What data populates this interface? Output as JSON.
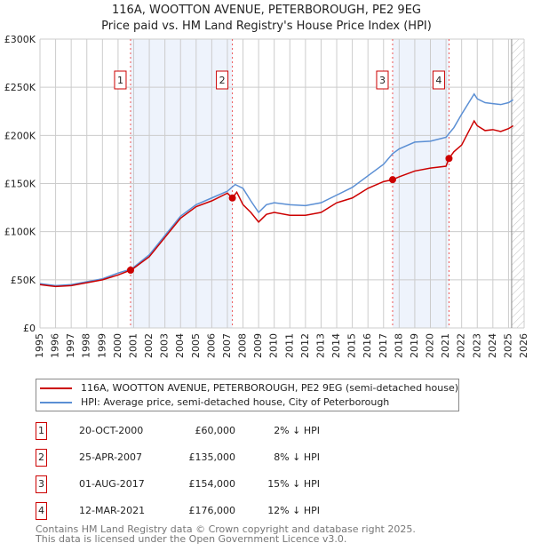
{
  "title": "116A, WOOTTON AVENUE, PETERBOROUGH, PE2 9EG",
  "subtitle": "Price paid vs. HM Land Registry's House Price Index (HPI)",
  "chart_data": {
    "type": "line",
    "title": "116A, WOOTTON AVENUE, PETERBOROUGH, PE2 9EG",
    "subtitle": "Price paid vs. HM Land Registry's House Price Index (HPI)",
    "xlim": [
      1995,
      2026
    ],
    "ylim": [
      0,
      300000
    ],
    "x_ticks": [
      "1995",
      "1996",
      "1997",
      "1998",
      "1999",
      "2000",
      "2001",
      "2002",
      "2003",
      "2004",
      "2005",
      "2006",
      "2007",
      "2008",
      "2009",
      "2010",
      "2011",
      "2012",
      "2013",
      "2014",
      "2015",
      "2016",
      "2017",
      "2018",
      "2019",
      "2020",
      "2021",
      "2022",
      "2023",
      "2024",
      "2025",
      "2026"
    ],
    "y_ticks": [
      {
        "v": 0,
        "label": "£0"
      },
      {
        "v": 50000,
        "label": "£50K"
      },
      {
        "v": 100000,
        "label": "£100K"
      },
      {
        "v": 150000,
        "label": "£150K"
      },
      {
        "v": 200000,
        "label": "£200K"
      },
      {
        "v": 250000,
        "label": "£250K"
      },
      {
        "v": 300000,
        "label": "£300K"
      }
    ],
    "grid": true,
    "shaded_ranges": [
      [
        2000.8,
        2007.32
      ],
      [
        2017.58,
        2021.19
      ]
    ],
    "hatched_from": 2025.2,
    "series": [
      {
        "name": "116A, WOOTTON AVENUE, PETERBOROUGH, PE2 9EG (semi-detached house)",
        "color": "#cc0000",
        "x": [
          1995,
          1995.5,
          1996,
          1997,
          1998,
          1999,
          2000,
          2000.8,
          2001,
          2002,
          2003,
          2004,
          2005,
          2006,
          2007,
          2007.32,
          2007.6,
          2008,
          2008.5,
          2009,
          2009.5,
          2010,
          2011,
          2012,
          2013,
          2014,
          2015,
          2016,
          2017,
          2017.58,
          2018,
          2019,
          2020,
          2021,
          2021.19,
          2021.5,
          2022,
          2022.8,
          2023,
          2023.5,
          2024,
          2024.5,
          2025,
          2025.3
        ],
        "y": [
          45000,
          44000,
          43000,
          44000,
          47000,
          50000,
          55000,
          60000,
          62000,
          74000,
          94000,
          114000,
          126000,
          132000,
          140000,
          135000,
          141000,
          128000,
          120000,
          110000,
          118000,
          120000,
          117000,
          117000,
          120000,
          130000,
          135000,
          145000,
          152000,
          154000,
          157000,
          163000,
          166000,
          168000,
          176000,
          183000,
          190000,
          215000,
          210000,
          205000,
          206000,
          204000,
          207000,
          210000
        ]
      },
      {
        "name": "HPI: Average price, semi-detached house, City of Peterborough",
        "color": "#5b8fd4",
        "x": [
          1995,
          1995.5,
          1996,
          1997,
          1998,
          1999,
          2000,
          2000.8,
          2001,
          2002,
          2003,
          2004,
          2005,
          2006,
          2007,
          2007.5,
          2008,
          2008.5,
          2009,
          2009.5,
          2010,
          2011,
          2012,
          2013,
          2014,
          2015,
          2016,
          2017,
          2017.58,
          2018,
          2019,
          2020,
          2021,
          2021.5,
          2022,
          2022.8,
          2023,
          2023.5,
          2024,
          2024.5,
          2025,
          2025.3
        ],
        "y": [
          46000,
          45000,
          44000,
          45000,
          48000,
          51000,
          57000,
          61000,
          63000,
          76000,
          96000,
          116000,
          128000,
          135000,
          142000,
          149000,
          145000,
          132000,
          120000,
          128000,
          130000,
          128000,
          127000,
          130000,
          138000,
          146000,
          158000,
          170000,
          181000,
          186000,
          193000,
          194000,
          198000,
          208000,
          222000,
          243000,
          238000,
          234000,
          233000,
          232000,
          234000,
          237000
        ]
      }
    ],
    "sales": [
      {
        "n": "1",
        "x": 2000.8,
        "y": 60000
      },
      {
        "n": "2",
        "x": 2007.32,
        "y": 135000
      },
      {
        "n": "3",
        "x": 2017.58,
        "y": 154000
      },
      {
        "n": "4",
        "x": 2021.19,
        "y": 176000
      }
    ]
  },
  "legend": [
    "116A, WOOTTON AVENUE, PETERBOROUGH, PE2 9EG (semi-detached house)",
    "HPI: Average price, semi-detached house, City of Peterborough"
  ],
  "table": [
    {
      "n": "1",
      "date": "20-OCT-2000",
      "price": "£60,000",
      "diff": "2% ↓ HPI"
    },
    {
      "n": "2",
      "date": "25-APR-2007",
      "price": "£135,000",
      "diff": "8% ↓ HPI"
    },
    {
      "n": "3",
      "date": "01-AUG-2017",
      "price": "£154,000",
      "diff": "15% ↓ HPI"
    },
    {
      "n": "4",
      "date": "12-MAR-2021",
      "price": "£176,000",
      "diff": "12% ↓ HPI"
    }
  ],
  "footer": [
    "Contains HM Land Registry data © Crown copyright and database right 2025.",
    "This data is licensed under the Open Government Licence v3.0."
  ]
}
